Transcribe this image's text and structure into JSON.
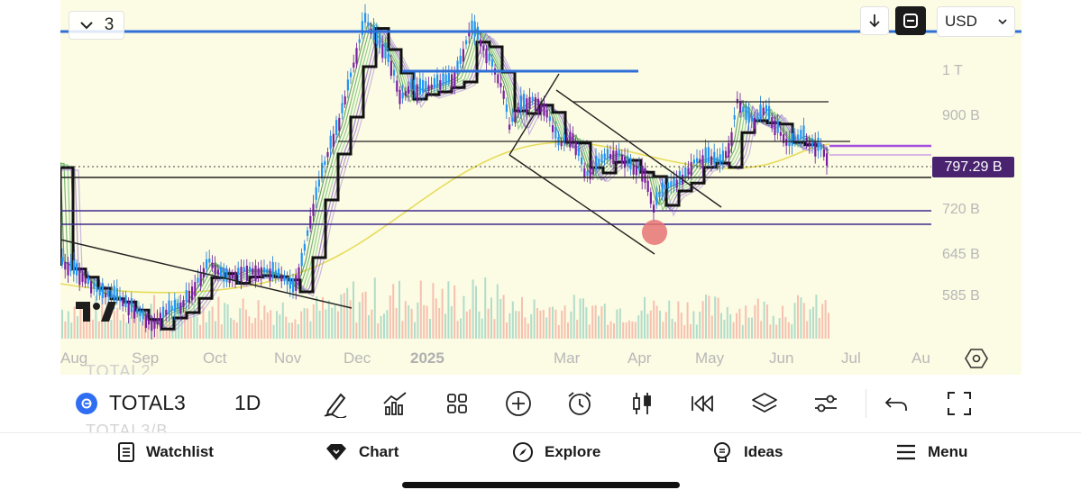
{
  "header": {
    "legend_count": "3",
    "currency": "USD"
  },
  "price_axis": {
    "labels": [
      "1 T",
      "900 B",
      "720 B",
      "645 B",
      "585 B"
    ],
    "current_price": "797.29 B"
  },
  "time_axis": {
    "labels": [
      "Aug",
      "Sep",
      "Oct",
      "Nov",
      "Dec",
      "2025",
      "Mar",
      "Apr",
      "May",
      "Jun",
      "Jul",
      "Au"
    ]
  },
  "ghost_symbols": {
    "top": "TOTAL2",
    "bottom": "TOTAL3/B"
  },
  "toolbar": {
    "symbol": "TOTAL3",
    "interval": "1D",
    "tools": [
      "pencil-icon",
      "indicators-icon",
      "grid-icon",
      "plus-circle-icon",
      "alarm-icon",
      "candles-icon",
      "replay-icon",
      "layers-icon",
      "settings-sliders-icon",
      "undo-icon",
      "fullscreen-corners-icon"
    ]
  },
  "nav": {
    "watchlist": "Watchlist",
    "chart": "Chart",
    "explore": "Explore",
    "ideas": "Ideas",
    "menu": "Menu"
  },
  "colors": {
    "chart_bg": "#fcfbe3",
    "price_badge": "#4a2370",
    "blue_line": "#2f6fd8",
    "purple_line": "#a64fe0",
    "marker": "#e57373"
  }
}
